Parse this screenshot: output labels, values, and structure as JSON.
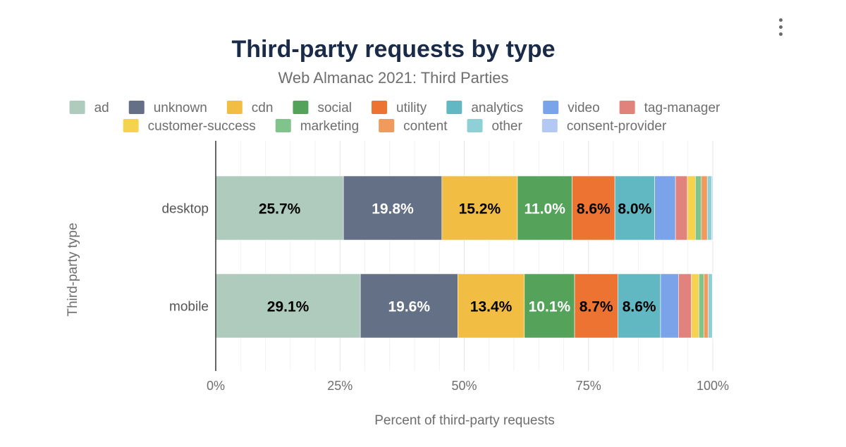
{
  "menu": {
    "icon": "more-vertical-icon"
  },
  "chart_data": {
    "type": "bar",
    "orientation": "horizontal",
    "stacked": true,
    "title": "Third-party requests by type",
    "subtitle": "Web Almanac 2021: Third Parties",
    "xlabel": "Percent of third-party requests",
    "ylabel": "Third-party type",
    "xlim": [
      0,
      100
    ],
    "xticks": [
      "0%",
      "25%",
      "50%",
      "75%",
      "100%"
    ],
    "grid": true,
    "legend_position": "top",
    "categories": [
      "desktop",
      "mobile"
    ],
    "series": [
      {
        "name": "ad",
        "color": "#aecbbe",
        "values": [
          25.7,
          29.1
        ],
        "labels": [
          "25.7%",
          "29.1%"
        ],
        "label_color": "#000000"
      },
      {
        "name": "unknown",
        "color": "#637085",
        "values": [
          19.8,
          19.6
        ],
        "labels": [
          "19.8%",
          "19.6%"
        ],
        "label_color": "#ffffff"
      },
      {
        "name": "cdn",
        "color": "#f2bd43",
        "values": [
          15.2,
          13.4
        ],
        "labels": [
          "15.2%",
          "13.4%"
        ],
        "label_color": "#000000"
      },
      {
        "name": "social",
        "color": "#55a35a",
        "values": [
          11.0,
          10.1
        ],
        "labels": [
          "11.0%",
          "10.1%"
        ],
        "label_color": "#ffffff"
      },
      {
        "name": "utility",
        "color": "#ec7332",
        "values": [
          8.6,
          8.7
        ],
        "labels": [
          "8.6%",
          "8.7%"
        ],
        "label_color": "#000000"
      },
      {
        "name": "analytics",
        "color": "#62b8c2",
        "values": [
          8.0,
          8.6
        ],
        "labels": [
          "8.0%",
          "8.6%"
        ],
        "label_color": "#000000"
      },
      {
        "name": "video",
        "color": "#7aa3ea",
        "values": [
          4.2,
          3.6
        ],
        "labels": [
          "",
          ""
        ],
        "label_color": "#000000"
      },
      {
        "name": "tag-manager",
        "color": "#e2827c",
        "values": [
          2.4,
          2.6
        ],
        "labels": [
          "",
          ""
        ],
        "label_color": "#000000"
      },
      {
        "name": "customer-success",
        "color": "#f5d34f",
        "values": [
          1.6,
          1.5
        ],
        "labels": [
          "",
          ""
        ],
        "label_color": "#000000"
      },
      {
        "name": "marketing",
        "color": "#80c48c",
        "values": [
          1.2,
          1.0
        ],
        "labels": [
          "",
          ""
        ],
        "label_color": "#000000"
      },
      {
        "name": "content",
        "color": "#f09a5b",
        "values": [
          1.2,
          0.9
        ],
        "labels": [
          "",
          ""
        ],
        "label_color": "#000000"
      },
      {
        "name": "other",
        "color": "#8fcfd6",
        "values": [
          0.9,
          0.8
        ],
        "labels": [
          "",
          ""
        ],
        "label_color": "#000000"
      },
      {
        "name": "consent-provider",
        "color": "#b3c9f3",
        "values": [
          0.2,
          0.1
        ],
        "labels": [
          "",
          ""
        ],
        "label_color": "#000000"
      }
    ]
  }
}
